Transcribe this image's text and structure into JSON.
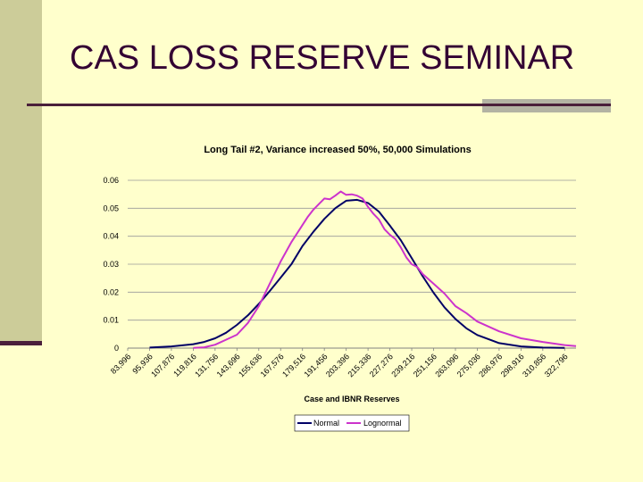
{
  "slide": {
    "title": "CAS LOSS RESERVE SEMINAR"
  },
  "colors": {
    "background": "#ffffcc",
    "left_band": "#cccc99",
    "rule": "#4a1f3a",
    "rule_accent": "#b3b3a3",
    "title": "#330033"
  },
  "chart_data": {
    "type": "line",
    "title": "Long Tail #2, Variance increased 50%, 50,000 Simulations",
    "xlabel": "Case and IBNR Reserves",
    "ylabel": "",
    "ylim": [
      0,
      0.06
    ],
    "yticks": [
      0,
      0.01,
      0.02,
      0.03,
      0.04,
      0.05,
      0.06
    ],
    "ytick_labels": [
      "0",
      "0.01",
      "0.02",
      "0.03",
      "0.04",
      "0.05",
      "0.06"
    ],
    "xlim": [
      83996,
      329000
    ],
    "xtick_labels": [
      "83,996",
      "95,936",
      "107,876",
      "119,816",
      "131,756",
      "143,696",
      "155,636",
      "167,576",
      "179,516",
      "191,456",
      "203,396",
      "215,336",
      "227,276",
      "239,216",
      "251,156",
      "263,096",
      "275,036",
      "286,976",
      "298,916",
      "310,856",
      "322,796"
    ],
    "xticks": [
      83996,
      95936,
      107876,
      119816,
      131756,
      143696,
      155636,
      167576,
      179516,
      191456,
      203396,
      215336,
      227276,
      239216,
      251156,
      263096,
      275036,
      286976,
      298916,
      310856,
      322796
    ],
    "grid": "horizontal",
    "legend_position": "bottom",
    "series": [
      {
        "name": "Normal",
        "color": "#000066",
        "x": [
          95936,
          107876,
          119816,
          125786,
          131756,
          137726,
          143696,
          149666,
          155636,
          161606,
          167576,
          173546,
          179516,
          185486,
          191456,
          197426,
          203396,
          209366,
          215336,
          221306,
          227276,
          233246,
          239216,
          245186,
          251156,
          257126,
          263096,
          269066,
          275036,
          286976,
          298916,
          310856,
          322796
        ],
        "y": [
          0.0002,
          0.0006,
          0.0014,
          0.0022,
          0.0035,
          0.0055,
          0.0083,
          0.0117,
          0.0158,
          0.0204,
          0.0252,
          0.0301,
          0.0365,
          0.0416,
          0.0462,
          0.05,
          0.0527,
          0.053,
          0.0519,
          0.0488,
          0.0438,
          0.0386,
          0.0322,
          0.0257,
          0.0198,
          0.0146,
          0.0104,
          0.0071,
          0.0047,
          0.0018,
          0.0006,
          0.0002,
          0.0001
        ]
      },
      {
        "name": "Lognormal",
        "color": "#cc33cc",
        "x": [
          119816,
          125786,
          131756,
          137726,
          143696,
          149666,
          155636,
          161606,
          167576,
          173546,
          179516,
          182500,
          185486,
          188470,
          191456,
          194440,
          197426,
          200410,
          203396,
          206380,
          209366,
          212350,
          215336,
          218320,
          221306,
          224290,
          227276,
          230260,
          233246,
          236230,
          239216,
          242200,
          245186,
          251156,
          257126,
          263096,
          269066,
          275036,
          286976,
          298916,
          310856,
          322796,
          329000
        ],
        "y": [
          0.0001,
          0.0003,
          0.0012,
          0.003,
          0.0048,
          0.009,
          0.015,
          0.023,
          0.031,
          0.038,
          0.044,
          0.047,
          0.0495,
          0.0515,
          0.0535,
          0.0532,
          0.0545,
          0.056,
          0.0548,
          0.055,
          0.0545,
          0.0535,
          0.0505,
          0.048,
          0.046,
          0.0425,
          0.0405,
          0.039,
          0.036,
          0.0325,
          0.03,
          0.029,
          0.0265,
          0.023,
          0.0195,
          0.015,
          0.0125,
          0.0095,
          0.006,
          0.0035,
          0.0022,
          0.0011,
          0.0007
        ]
      }
    ]
  }
}
